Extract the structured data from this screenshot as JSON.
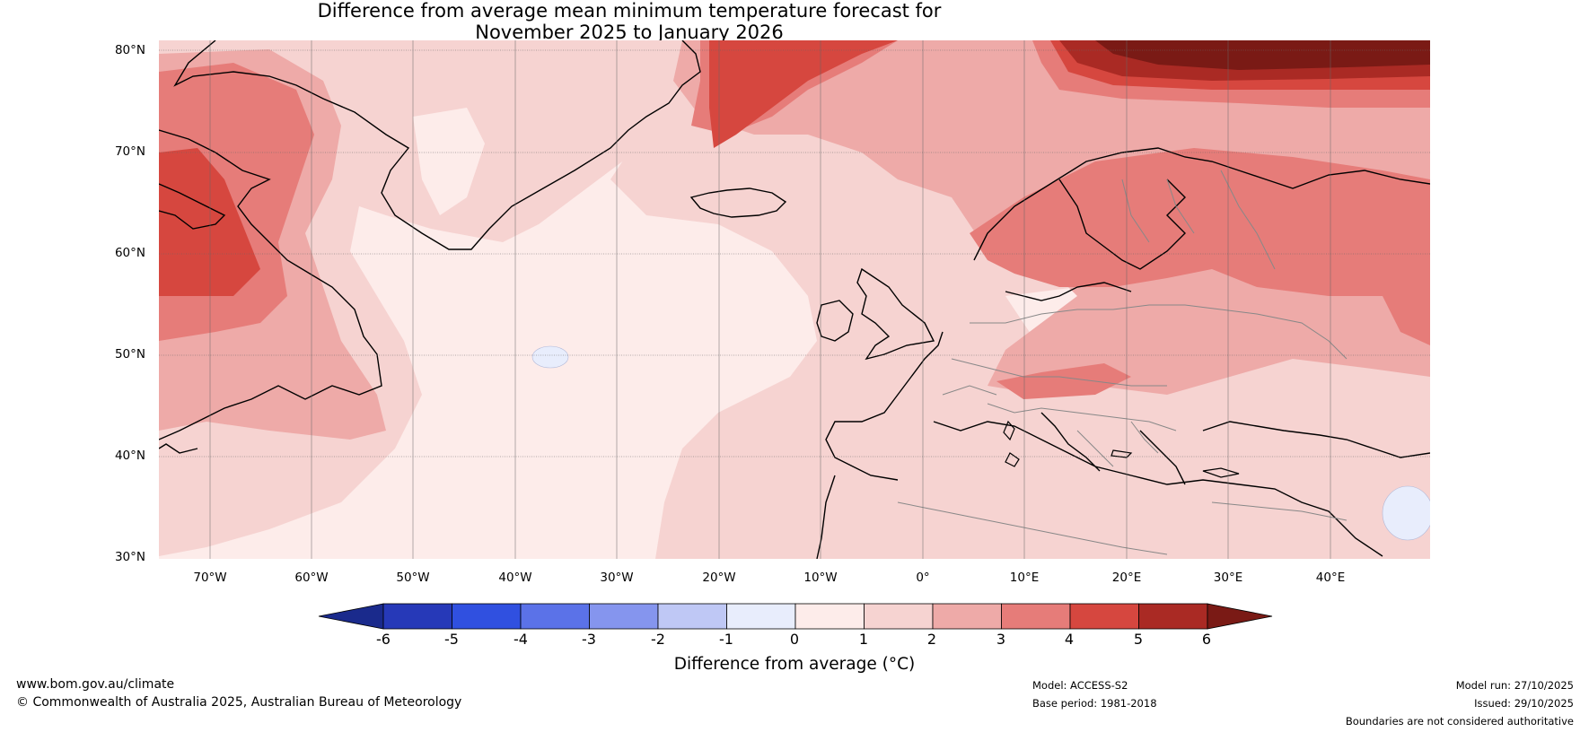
{
  "title": {
    "line1": "Difference from average mean minimum temperature forecast for",
    "line2": "November 2025 to January 2026"
  },
  "map": {
    "region": "North Atlantic and Europe",
    "latitude_labels": [
      "80°N",
      "70°N",
      "60°N",
      "50°N",
      "40°N",
      "30°N"
    ],
    "longitude_labels": [
      "70°W",
      "60°W",
      "50°W",
      "40°W",
      "30°W",
      "20°W",
      "10°W",
      "0°",
      "10°E",
      "20°E",
      "30°E",
      "40°E"
    ]
  },
  "colorbar": {
    "title": "Difference from average (°C)",
    "tick_labels": [
      "-6",
      "-5",
      "-4",
      "-3",
      "-2",
      "-1",
      "0",
      "1",
      "2",
      "3",
      "4",
      "5",
      "6"
    ],
    "colors": [
      "#1a2a8c",
      "#2639b8",
      "#3050e0",
      "#5b72e8",
      "#8595ee",
      "#bfc8f5",
      "#e8edfc",
      "#fdecea",
      "#f6d3d1",
      "#eeaaa8",
      "#e67c79",
      "#d6473f",
      "#aa2a24",
      "#7a1a15"
    ]
  },
  "footer": {
    "website": "www.bom.gov.au/climate",
    "copyright": "© Commonwealth of Australia 2025, Australian Bureau of Meteorology",
    "model": "Model: ACCESS-S2",
    "base_period": "Base period: 1981-2018",
    "model_run": "Model run: 27/10/2025",
    "issued": "Issued: 29/10/2025",
    "disclaimer": "Boundaries are not considered authoritative"
  }
}
